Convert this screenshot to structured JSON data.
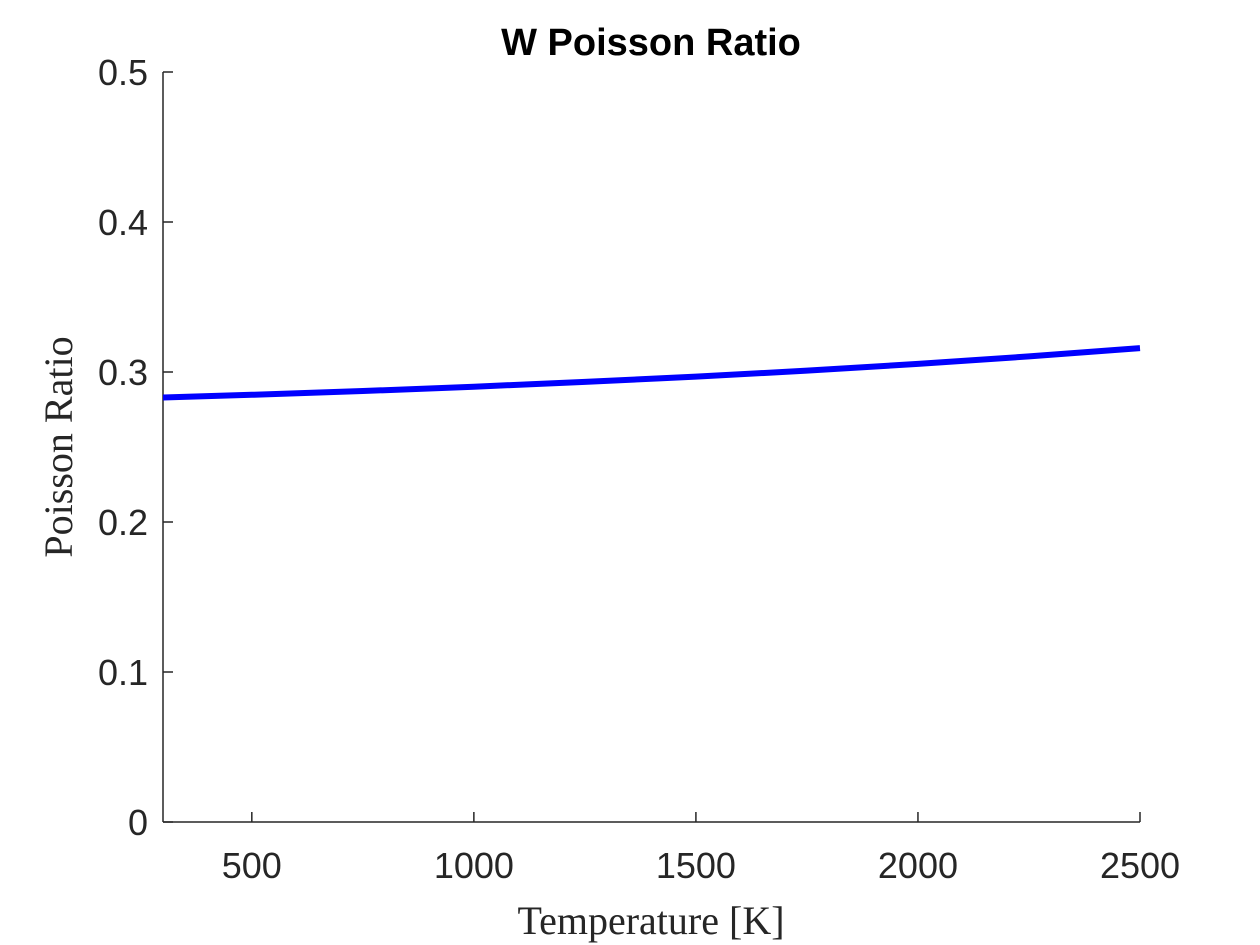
{
  "chart_data": {
    "type": "line",
    "title": "W Poisson Ratio",
    "xlabel": "Temperature [K]",
    "ylabel": "Poisson Ratio",
    "xlim": [
      300,
      2500
    ],
    "ylim": [
      0,
      0.5
    ],
    "xticks": [
      500,
      1000,
      1500,
      2000,
      2500
    ],
    "xtick_labels": [
      "500",
      "1000",
      "1500",
      "2000",
      "2500"
    ],
    "yticks": [
      0,
      0.1,
      0.2,
      0.3,
      0.4,
      0.5
    ],
    "ytick_labels": [
      "0",
      "0.1",
      "0.2",
      "0.3",
      "0.4",
      "0.5"
    ],
    "grid": false,
    "series": [
      {
        "color": "#0000ff",
        "x": [
          300,
          500,
          750,
          1000,
          1250,
          1500,
          1750,
          2000,
          2250,
          2500
        ],
        "y": [
          0.283,
          0.2848,
          0.2873,
          0.2902,
          0.2934,
          0.2969,
          0.3009,
          0.3054,
          0.3104,
          0.3159
        ]
      }
    ]
  }
}
